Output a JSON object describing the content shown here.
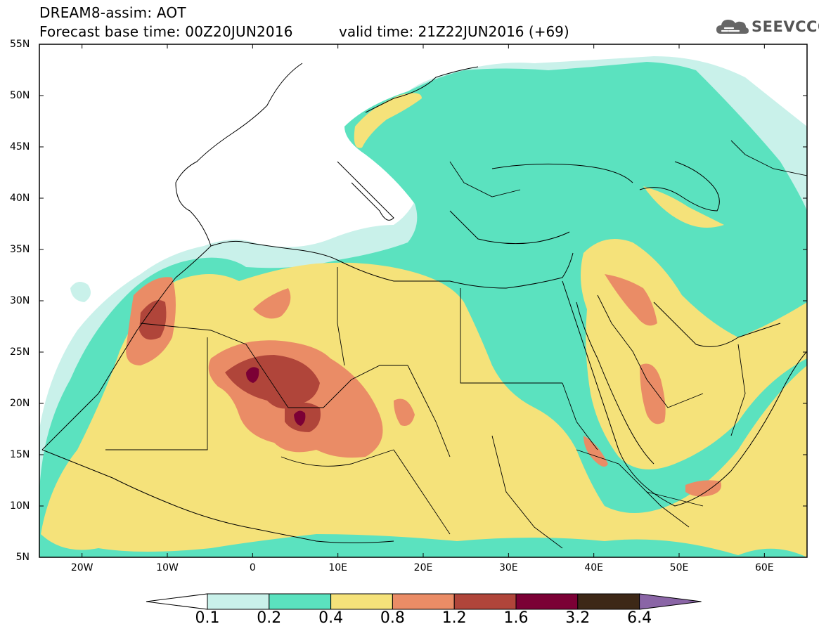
{
  "header": {
    "title": "DREAM8-assim: AOT",
    "base_time": "Forecast base time: 00Z20JUN2016",
    "valid_time": "valid time: 21Z22JUN2016 (+69)",
    "logo_text": "SEEVCCC"
  },
  "map": {
    "lat_labels": [
      "55N",
      "50N",
      "45N",
      "40N",
      "35N",
      "30N",
      "25N",
      "20N",
      "15N",
      "10N",
      "5N"
    ],
    "lon_labels": [
      "20W",
      "10W",
      "0",
      "10E",
      "20E",
      "30E",
      "40E",
      "50E",
      "60E"
    ],
    "lat_range": [
      5,
      55
    ],
    "lon_range": [
      -25,
      65
    ]
  },
  "legend": {
    "labels": [
      "0.1",
      "0.2",
      "0.4",
      "0.8",
      "1.2",
      "1.6",
      "3.2",
      "6.4"
    ],
    "colors": [
      "#ffffff",
      "#c9f1ea",
      "#5be2bf",
      "#f5e27a",
      "#ea8c66",
      "#b0453a",
      "#7b0035",
      "#3d2817",
      "#8a65a6"
    ]
  },
  "colors": {
    "c1": "#c9f1ea",
    "c2": "#5be2bf",
    "c3": "#f5e27a",
    "c4": "#ea8c66",
    "c5": "#b0453a",
    "c6": "#7b0035"
  }
}
